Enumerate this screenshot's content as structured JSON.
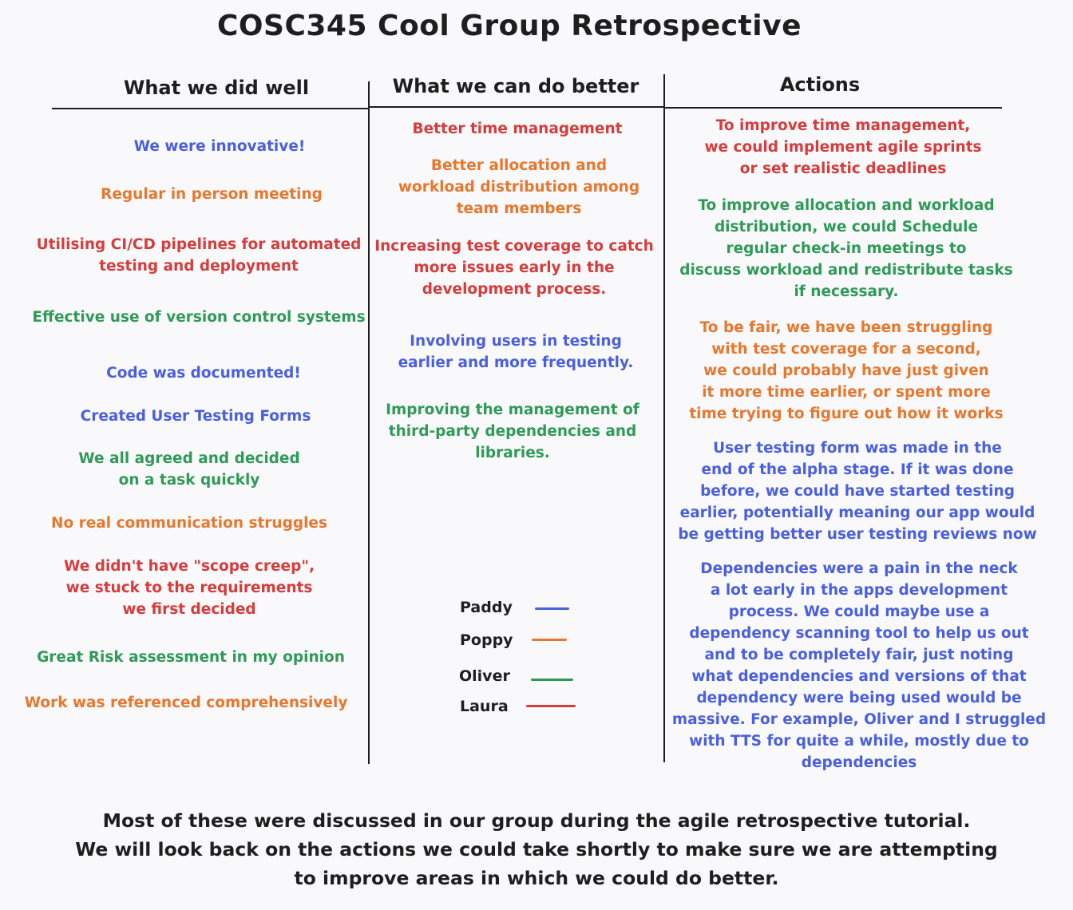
{
  "title": "COSC345 Cool Group Retrospective",
  "colors": {
    "blue": "#4a5fe0",
    "orange": "#e8772e",
    "green": "#2f9a57",
    "red": "#d63c3c",
    "ink": "#1e1e1e",
    "background": "#f9f9fb"
  },
  "columns": {
    "well": {
      "header": "What we did well",
      "items": [
        {
          "text": "We were innovative!",
          "color": "blue"
        },
        {
          "text": "Regular in person meeting",
          "color": "orange"
        },
        {
          "text": "Utilising CI/CD pipelines for automated\ntesting and deployment",
          "color": "red"
        },
        {
          "text": "Effective use of version control systems",
          "color": "green"
        },
        {
          "text": "Code was documented!",
          "color": "blue"
        },
        {
          "text": "Created User Testing Forms",
          "color": "blue"
        },
        {
          "text": "We all agreed and decided\non a task quickly",
          "color": "green"
        },
        {
          "text": "No real communication struggles",
          "color": "orange"
        },
        {
          "text": "We didn't have \"scope creep\",\nwe stuck to the requirements\nwe first decided",
          "color": "red"
        },
        {
          "text": "Great Risk assessment in my opinion",
          "color": "green"
        },
        {
          "text": "Work was referenced comprehensively",
          "color": "orange"
        }
      ]
    },
    "better": {
      "header": "What we can do better",
      "items": [
        {
          "text": "Better time management",
          "color": "red"
        },
        {
          "text": "Better allocation and\nworkload distribution among\nteam members",
          "color": "orange"
        },
        {
          "text": "Increasing test coverage to catch\nmore issues early in the\ndevelopment process.",
          "color": "red"
        },
        {
          "text": "Involving users in testing\nearlier and more frequently.",
          "color": "blue"
        },
        {
          "text": "Improving the management of\nthird-party dependencies and\nlibraries.",
          "color": "green"
        }
      ]
    },
    "actions": {
      "header": "Actions",
      "items": [
        {
          "text": "To improve time management,\nwe could implement agile sprints\nor set realistic deadlines",
          "color": "red"
        },
        {
          "text": "To improve allocation and workload\ndistribution, we could Schedule\nregular check-in meetings to\ndiscuss workload and redistribute tasks\nif necessary.",
          "color": "green"
        },
        {
          "text": "To be fair, we have been struggling\nwith test coverage for a second,\nwe could probably have just given\nit more time earlier, or spent more\ntime trying to figure out how it works",
          "color": "orange"
        },
        {
          "text": "User testing form was made in the\nend of the alpha stage. If it was done\nbefore, we could have started testing\nearlier, potentially meaning our app would\nbe getting better user testing reviews now",
          "color": "blue"
        },
        {
          "text": "Dependencies were a pain in the neck\na lot early in the apps development\nprocess. We could maybe use a\ndependency scanning tool to help us out\nand to be completely fair, just noting\nwhat dependencies and versions of that\ndependency were being used would be\nmassive. For example, Oliver and I struggled\nwith TTS for quite a while, mostly due to\ndependencies",
          "color": "blue"
        }
      ]
    }
  },
  "legend": [
    {
      "name": "Paddy",
      "color": "blue"
    },
    {
      "name": "Poppy",
      "color": "orange"
    },
    {
      "name": "Oliver",
      "color": "green"
    },
    {
      "name": "Laura",
      "color": "red"
    }
  ],
  "footer": "Most of these were discussed in our group during the agile retrospective tutorial.\nWe will look back on the actions we could take shortly to make sure we are attempting\nto improve areas in which we could do better."
}
